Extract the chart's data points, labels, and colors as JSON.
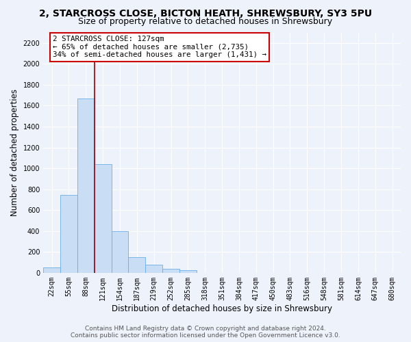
{
  "title": "2, STARCROSS CLOSE, BICTON HEATH, SHREWSBURY, SY3 5PU",
  "subtitle": "Size of property relative to detached houses in Shrewsbury",
  "xlabel": "Distribution of detached houses by size in Shrewsbury",
  "ylabel": "Number of detached properties",
  "bar_labels": [
    "22sqm",
    "55sqm",
    "88sqm",
    "121sqm",
    "154sqm",
    "187sqm",
    "219sqm",
    "252sqm",
    "285sqm",
    "318sqm",
    "351sqm",
    "384sqm",
    "417sqm",
    "450sqm",
    "483sqm",
    "516sqm",
    "548sqm",
    "581sqm",
    "614sqm",
    "647sqm",
    "680sqm"
  ],
  "bar_heights": [
    50,
    745,
    1670,
    1040,
    400,
    150,
    80,
    40,
    25,
    0,
    0,
    0,
    0,
    0,
    0,
    0,
    0,
    0,
    0,
    0,
    0
  ],
  "bar_color": "#c9ddf5",
  "bar_edgecolor": "#6aaee8",
  "vline_color": "#990000",
  "annotation_text": "2 STARCROSS CLOSE: 127sqm\n← 65% of detached houses are smaller (2,735)\n34% of semi-detached houses are larger (1,431) →",
  "annotation_box_edgecolor": "#cc0000",
  "annotation_box_facecolor": "#ffffff",
  "ylim": [
    0,
    2300
  ],
  "yticks": [
    0,
    200,
    400,
    600,
    800,
    1000,
    1200,
    1400,
    1600,
    1800,
    2000,
    2200
  ],
  "footer1": "Contains HM Land Registry data © Crown copyright and database right 2024.",
  "footer2": "Contains public sector information licensed under the Open Government Licence v3.0.",
  "bg_color": "#edf2fb",
  "plot_bg_color": "#edf2fb",
  "grid_color": "#ffffff",
  "title_fontsize": 10,
  "subtitle_fontsize": 9,
  "label_fontsize": 8.5,
  "tick_fontsize": 7,
  "footer_fontsize": 6.5,
  "annotation_fontsize": 7.8
}
